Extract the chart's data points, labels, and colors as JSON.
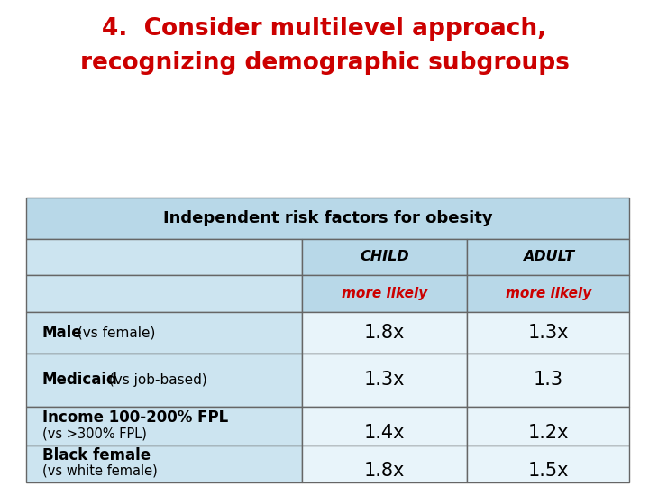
{
  "title_line1": "4.  Consider multilevel approach,",
  "title_line2": "recognizing demographic subgroups",
  "title_color": "#cc0000",
  "title_fontsize": 19,
  "title_weight": "bold",
  "table_header": "Independent risk factors for obesity",
  "col_headers": [
    "CHILD",
    "ADULT"
  ],
  "col_subheaders": [
    "more likely",
    "more likely"
  ],
  "rows": [
    {
      "label_bold": "Male",
      "label_normal": " (vs female)",
      "two_line": false,
      "child": "1.8x",
      "adult": "1.3x"
    },
    {
      "label_bold": "Medicaid",
      "label_normal": " (vs job-based)",
      "two_line": false,
      "child": "1.3x",
      "adult": "1.3"
    },
    {
      "label_bold": "Income 100-200% FPL",
      "label_normal": "(vs >300% FPL)",
      "two_line": true,
      "child": "1.4x",
      "adult": "1.2x"
    },
    {
      "label_bold": "Black female",
      "label_normal": "(vs white female)",
      "two_line": true,
      "child": "1.8x",
      "adult": "1.5x"
    }
  ],
  "bg_color": "#ffffff",
  "table_header_bg": "#b8d8e8",
  "label_cell_bg": "#cce4f0",
  "cell_bg": "#e8f4fa",
  "border_color": "#666666",
  "text_color": "#000000",
  "red_color": "#cc0000",
  "col_splits": [
    0.04,
    0.465,
    0.72,
    0.97
  ],
  "row_tops": [
    0.595,
    0.51,
    0.435,
    0.36,
    0.275,
    0.165,
    0.085,
    0.01
  ]
}
